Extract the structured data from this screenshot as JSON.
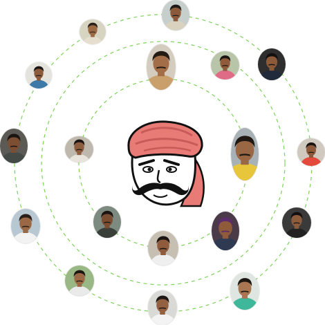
{
  "logo": {
    "icon": "turbaned-man-with-mustache",
    "turban_color": "#e97b77",
    "face_color": "#ffffff",
    "outline_color": "#111111"
  },
  "orbits": {
    "count": 3,
    "stroke_color": "#7cd35a",
    "style": "dashed"
  },
  "avatars": [
    {
      "id": "p01",
      "bg": "#c7cfcc",
      "skin": "#8a5a3a",
      "hair": "#1e1a18",
      "shirt": "#d9d2bf"
    },
    {
      "id": "p02",
      "bg": "#d8d4c2",
      "skin": "#9b6a44",
      "hair": "#2b211b",
      "shirt": "#e6dfcf"
    },
    {
      "id": "p03",
      "bg": "#e5e3de",
      "skin": "#8c5a3c",
      "hair": "#1b1512",
      "shirt": "#3d7aa8"
    },
    {
      "id": "p04",
      "bg": "#d4cdbf",
      "skin": "#a36d47",
      "hair": "#241b15",
      "shirt": "#c9a06b"
    },
    {
      "id": "p05",
      "bg": "#b9c5a8",
      "skin": "#8f5b3b",
      "hair": "#1a1512",
      "shirt": "#e06b86"
    },
    {
      "id": "p06",
      "bg": "#2e2e2e",
      "skin": "#8d5a39",
      "hair": "#141010",
      "shirt": "#202a3a"
    },
    {
      "id": "p07",
      "bg": "#5c5a55",
      "skin": "#7c4f33",
      "hair": "#1b1512",
      "shirt": "#444a45"
    },
    {
      "id": "p08",
      "bg": "#bfb9ad",
      "skin": "#8d5d3e",
      "hair": "#1a1512",
      "shirt": "#e8e4dc"
    },
    {
      "id": "p09",
      "bg": "#a8b1b5",
      "skin": "#9a6744",
      "hair": "#1f1813",
      "shirt": "#e8c63c"
    },
    {
      "id": "p10",
      "bg": "#cfc9c0",
      "skin": "#8c5a3a",
      "hair": "#1a1512",
      "shirt": "#e44a3b"
    },
    {
      "id": "p11",
      "bg": "#b8c8d2",
      "skin": "#9a6845",
      "hair": "#2a1f18",
      "shirt": "#f2f2f2"
    },
    {
      "id": "p12",
      "bg": "#7d8a80",
      "skin": "#7a4c31",
      "hair": "#1a1512",
      "shirt": "#3b3f3a"
    },
    {
      "id": "p13",
      "bg": "#4b3b49",
      "skin": "#8f5b3b",
      "hair": "#5d2c6b",
      "shirt": "#2d3a52"
    },
    {
      "id": "p14",
      "bg": "#3a3a3a",
      "skin": "#8d5c3d",
      "hair": "#141010",
      "shirt": "#222222"
    },
    {
      "id": "p15",
      "bg": "#c7bfb1",
      "skin": "#8e5c3c",
      "hair": "#1a1512",
      "shirt": "#efefef"
    },
    {
      "id": "p16",
      "bg": "#9ab886",
      "skin": "#9b6946",
      "hair": "#1d1713",
      "shirt": "#eaeaea"
    },
    {
      "id": "p17",
      "bg": "#dfe6e1",
      "skin": "#a87650",
      "hair": "#1d1713",
      "shirt": "#3eb79a"
    },
    {
      "id": "p18",
      "bg": "#d9d9d6",
      "skin": "#936142",
      "hair": "#1d1713",
      "shirt": "#f3f3f3"
    },
    {
      "id": "p19",
      "bg": "#6b5e58",
      "skin": "#845538",
      "hair": "#1d1713",
      "shirt": "#4a4543"
    }
  ]
}
